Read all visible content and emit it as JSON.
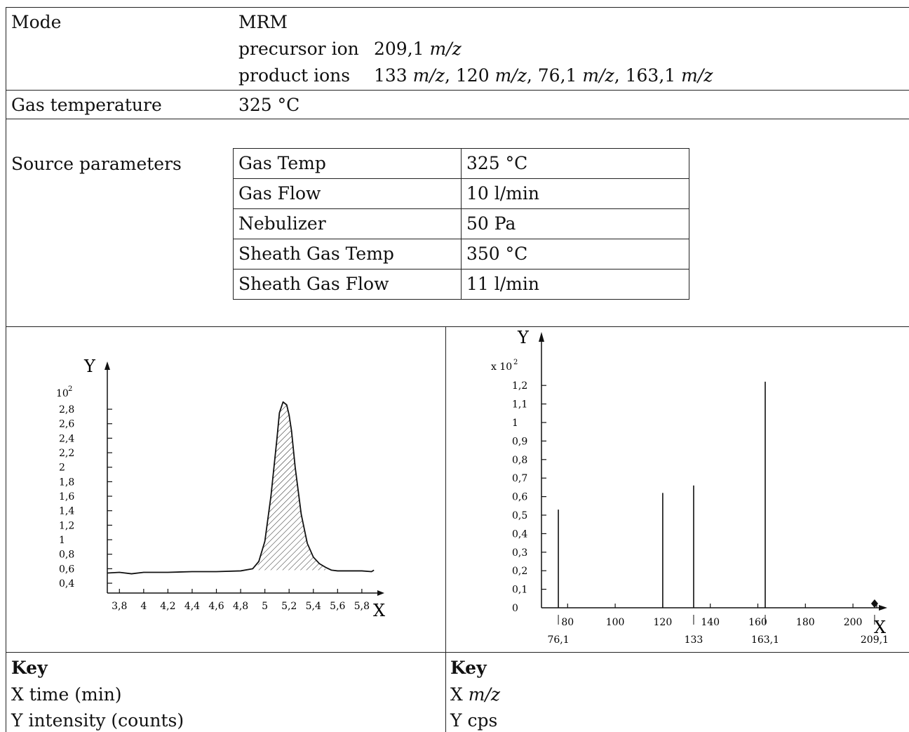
{
  "mode": {
    "label": "Mode",
    "value": "MRM",
    "precursor_label": "precursor ion",
    "precursor_value": "209,1",
    "product_label": "product ions",
    "product_values": [
      "133",
      "120",
      "76,1",
      "163,1"
    ],
    "unit": "m/z"
  },
  "gas_temperature": {
    "label": "Gas temperature",
    "value": "325 °C"
  },
  "source_parameters": {
    "label": "Source parameters",
    "rows": [
      {
        "name": "Gas Temp",
        "value": "325 °C"
      },
      {
        "name": "Gas Flow",
        "value": "10 l/min"
      },
      {
        "name": "Nebulizer",
        "value": "50 Pa"
      },
      {
        "name": "Sheath Gas Temp",
        "value": "350 °C"
      },
      {
        "name": "Sheath Gas Flow",
        "value": "11 l/min"
      }
    ]
  },
  "chart_data": [
    {
      "type": "line",
      "title": "",
      "xlabel": "X",
      "ylabel": "Y",
      "y_multiplier": "10",
      "y_multiplier_exp": "2",
      "x_ticks": [
        "3,8",
        "4",
        "4,2",
        "4,4",
        "4,6",
        "4,8",
        "5",
        "5,2",
        "5,4",
        "5,6",
        "5,8"
      ],
      "y_ticks": [
        "0,4",
        "0,6",
        "0,8",
        "1",
        "1,2",
        "1,4",
        "1,6",
        "1,8",
        "2",
        "2,2",
        "2,4",
        "2,6",
        "2,8"
      ],
      "xlim": [
        3.7,
        6.0
      ],
      "ylim": [
        0.3,
        3.1
      ],
      "series": [
        {
          "x": [
            3.7,
            3.8,
            3.9,
            4.0,
            4.2,
            4.4,
            4.6,
            4.8,
            4.9,
            4.95,
            5.0,
            5.05,
            5.1,
            5.12,
            5.15,
            5.18,
            5.2,
            5.22,
            5.25,
            5.3,
            5.35,
            5.4,
            5.45,
            5.5,
            5.55,
            5.6,
            5.7,
            5.8,
            5.88,
            5.9
          ],
          "y": [
            0.54,
            0.55,
            0.53,
            0.55,
            0.55,
            0.56,
            0.56,
            0.57,
            0.6,
            0.7,
            0.98,
            1.6,
            2.4,
            2.75,
            2.9,
            2.86,
            2.72,
            2.5,
            2.0,
            1.35,
            0.95,
            0.76,
            0.67,
            0.62,
            0.58,
            0.57,
            0.57,
            0.57,
            0.56,
            0.58
          ]
        }
      ],
      "shaded_area": {
        "x_start": 4.93,
        "x_end": 5.5
      },
      "key": {
        "title": "Key",
        "items": [
          "X time (min)",
          "Y intensity (counts)"
        ]
      }
    },
    {
      "type": "bar",
      "title": "",
      "xlabel": "X",
      "ylabel": "Y",
      "y_multiplier": "x 10",
      "y_multiplier_exp": "2",
      "x_ticks": [
        "80",
        "100",
        "120",
        "140",
        "160",
        "180",
        "200"
      ],
      "y_ticks": [
        "0",
        "0,1",
        "0,2",
        "0,3",
        "0,4",
        "0,5",
        "0,6",
        "0,7",
        "0,8",
        "0,9",
        "1",
        "1,1",
        "1,2"
      ],
      "xlim": [
        69,
        217
      ],
      "ylim": [
        0,
        1.3
      ],
      "series": [
        {
          "x": [
            76.1,
            120,
            133,
            163.1
          ],
          "labels": [
            "76,1",
            "",
            "133",
            "163,1"
          ],
          "values": [
            0.53,
            0.62,
            0.66,
            1.22
          ]
        }
      ],
      "precursor_marker": {
        "x": 209.1,
        "label": "209,1"
      },
      "key": {
        "title": "Key",
        "items": [
          "X m/z",
          "Y cps"
        ]
      }
    }
  ]
}
